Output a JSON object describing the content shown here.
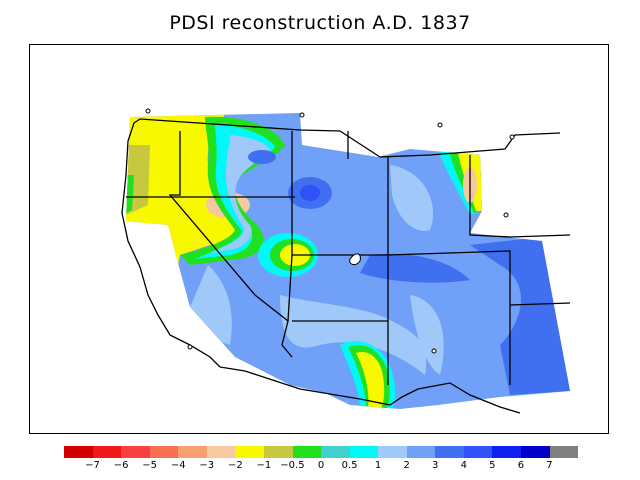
{
  "title": "PDSI reconstruction A.D. 1837",
  "legend": {
    "colors": [
      "#d00000",
      "#f01818",
      "#f84040",
      "#f87050",
      "#f8a070",
      "#f8c8a0",
      "#f8f800",
      "#c8c840",
      "#20e020",
      "#40d0d0",
      "#00f8f8",
      "#a0c8f8",
      "#70a0f8",
      "#4070f0",
      "#3050f8",
      "#1020f0",
      "#0000c8",
      "#808080"
    ],
    "labels": [
      "−7",
      "−6",
      "−5",
      "−4",
      "−3",
      "−2",
      "−1",
      "−0.5",
      "0",
      "0.5",
      "1",
      "2",
      "3",
      "4",
      "5",
      "6",
      "7"
    ]
  },
  "region_colors": {
    "dry_strong": "#f8c8a0",
    "dry_mild": "#f8f800",
    "dry_slight": "#c8c840",
    "neutral": "#20e020",
    "wet_slight": "#40d0d0",
    "wet_low": "#00f8f8",
    "wet_1": "#a0c8f8",
    "wet_2": "#70a0f8",
    "wet_3": "#4070f0",
    "wet_4": "#3050f8"
  }
}
